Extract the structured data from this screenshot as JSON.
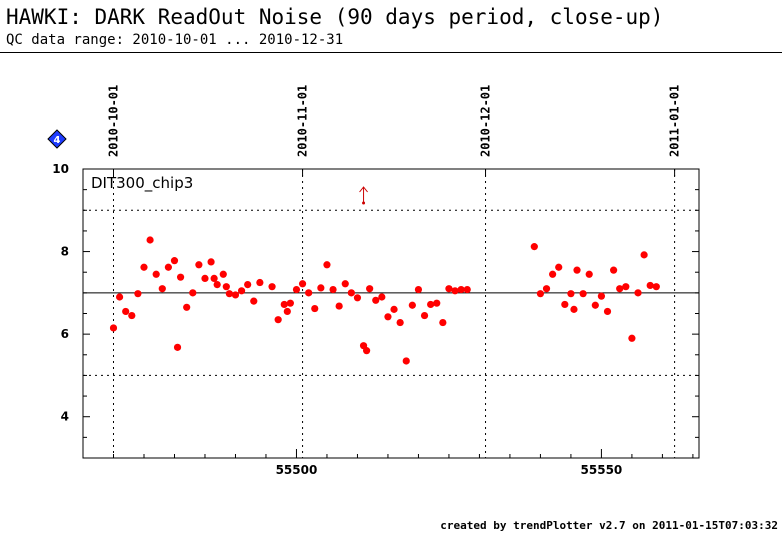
{
  "header": {
    "title": "HAWKI: DARK ReadOut Noise (90 days period, close-up)",
    "subtitle": "QC data range: 2010-10-01 ... 2010-12-31"
  },
  "footer": {
    "credit": "created by trendPlotter v2.7 on 2011-01-15T07:03:32"
  },
  "marker_badge": "4",
  "chart_data": {
    "type": "scatter",
    "panel_label": "DIT300_chip3",
    "xlim": [
      55465,
      55566
    ],
    "ylim": [
      3,
      10
    ],
    "x_ticks": [
      55500,
      55550
    ],
    "y_ticks": [
      4,
      6,
      8,
      10
    ],
    "date_ticks": [
      {
        "label": "2010-10-01",
        "mjd": 55470
      },
      {
        "label": "2010-11-01",
        "mjd": 55501
      },
      {
        "label": "2010-12-01",
        "mjd": 55531
      },
      {
        "label": "2011-01-01",
        "mjd": 55562
      }
    ],
    "reference_line": 7.0,
    "dashed_lines": [
      9.0,
      5.0
    ],
    "grid": "dashed vertical lines at month boundaries",
    "off_scale_marker": {
      "x": 55511
    },
    "colors": {
      "points": "#ff0000",
      "marker": "#cc0000",
      "badge": "#1e3cff"
    },
    "series": [
      {
        "x": [
          55470,
          55471,
          55472,
          55473,
          55474,
          55475,
          55476,
          55477,
          55478,
          55479,
          55480,
          55480.5,
          55481,
          55482,
          55483,
          55484,
          55485,
          55486,
          55486.5,
          55487,
          55488,
          55488.5,
          55489,
          55490,
          55491,
          55492,
          55493,
          55494,
          55496,
          55497,
          55498,
          55498.5,
          55499,
          55500,
          55501,
          55502,
          55503,
          55504,
          55505,
          55506,
          55507,
          55508,
          55509,
          55510,
          55511,
          55511.5,
          55512,
          55513,
          55514,
          55515,
          55516,
          55517,
          55518,
          55519,
          55520,
          55521,
          55522,
          55523,
          55524,
          55525,
          55526,
          55527,
          55528,
          55539,
          55540,
          55541,
          55542,
          55543,
          55544,
          55545,
          55545.5,
          55546,
          55547,
          55548,
          55549,
          55550,
          55551,
          55552,
          55553,
          55554,
          55555,
          55556,
          55557,
          55558,
          55559
        ],
        "y": [
          6.15,
          6.9,
          6.55,
          6.45,
          6.98,
          7.62,
          8.28,
          7.45,
          7.1,
          7.62,
          7.78,
          5.68,
          7.38,
          6.65,
          7.0,
          7.68,
          7.35,
          7.75,
          7.35,
          7.2,
          7.45,
          7.15,
          6.98,
          6.95,
          7.05,
          7.2,
          6.8,
          7.25,
          7.15,
          6.35,
          6.72,
          6.55,
          6.75,
          7.08,
          7.22,
          7.0,
          6.62,
          7.12,
          7.68,
          7.08,
          6.68,
          7.22,
          7.0,
          6.88,
          5.72,
          5.6,
          7.1,
          6.82,
          6.9,
          6.42,
          6.6,
          6.28,
          5.35,
          6.7,
          7.08,
          6.45,
          6.72,
          6.75,
          6.28,
          7.1,
          7.05,
          7.08,
          7.08,
          8.12,
          6.98,
          7.1,
          7.45,
          7.62,
          6.72,
          6.98,
          6.6,
          7.55,
          6.98,
          7.45,
          6.7,
          6.92,
          6.55,
          7.55,
          7.1,
          7.15,
          5.9,
          7.0,
          7.92,
          7.18,
          7.15
        ]
      }
    ]
  }
}
